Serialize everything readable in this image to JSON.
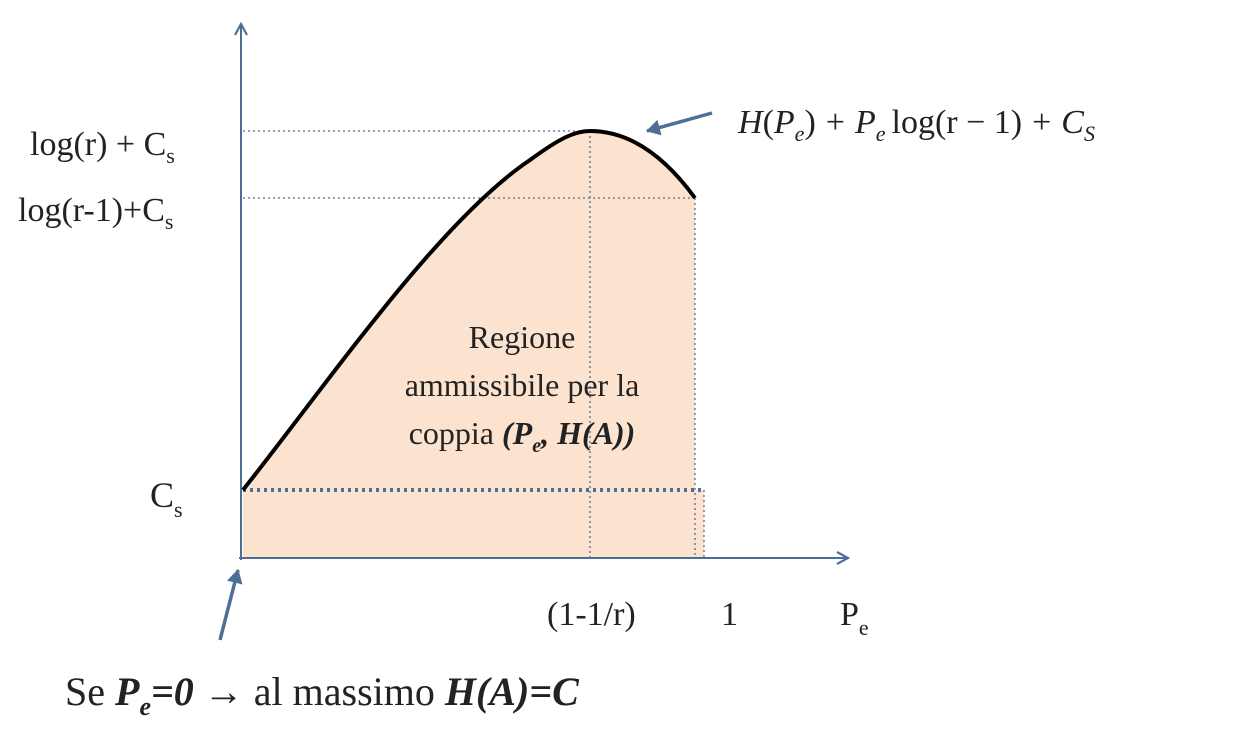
{
  "colors": {
    "region_fill": "#fbe3d0",
    "axis": "#4d6f96",
    "guide": "#4d6f96",
    "curve": "#000000",
    "text": "#222222"
  },
  "y_axis": {
    "label_log_r_main": "log(r) + C",
    "label_log_r_sub": "s",
    "label_log_r1_main": "log(r-1)+C",
    "label_log_r1_sub": "s",
    "label_cs_main": "C",
    "label_cs_sub": "s"
  },
  "x_axis": {
    "tick_peak": "(1-1/r)",
    "tick_one": "1",
    "label_main": "P",
    "label_sub": "e"
  },
  "curve_formula": {
    "H": "H",
    "Pe_main": "P",
    "Pe_sub": "e",
    "open_paren": "(",
    "close_paren": ")",
    "plus": "+",
    "log_r_minus_1": "log(r − 1)",
    "C_main": "C",
    "C_sub": "S"
  },
  "region_label": {
    "line1": "Regione",
    "line2": "ammissibile  per la",
    "line3_prefix": "coppia ",
    "line3_pair_a": "(P",
    "line3_pair_sub": "e",
    "line3_pair_b": ", H(A))"
  },
  "note": {
    "prefix": "Se ",
    "pe_main": "P",
    "pe_sub": "e",
    "pe_eq": "=0",
    "arrow": " → ",
    "middle": "al massimo ",
    "result": "H(A)=C"
  }
}
